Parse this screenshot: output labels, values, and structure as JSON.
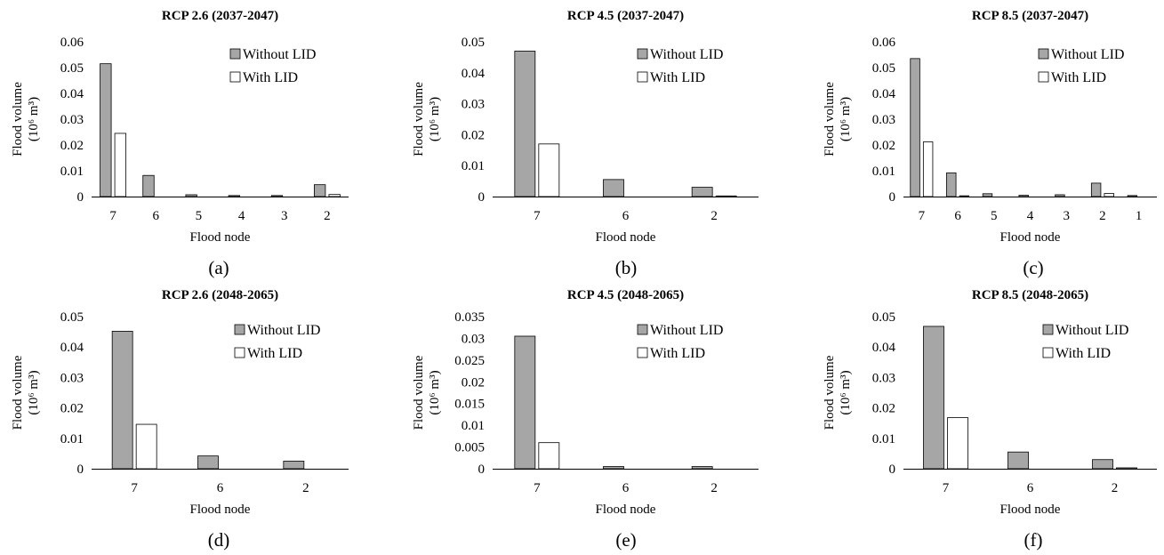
{
  "chart_data": [
    {
      "type": "bar",
      "title": "RCP 2.6 (2037-2047)",
      "caption": "(a)",
      "xlabel": "Flood node",
      "ylabel": "Flood volume",
      "ylabel_unit": "(10⁶ m³)",
      "ylim": [
        0,
        0.06
      ],
      "yticks": [
        "0",
        "0.01",
        "0.02",
        "0.03",
        "0.04",
        "0.05",
        "0.06"
      ],
      "categories": [
        "7",
        "6",
        "5",
        "4",
        "3",
        "2"
      ],
      "series": [
        {
          "name": "Without LID",
          "color": "#a6a6a6",
          "values": [
            0.0515,
            0.0082,
            0.0007,
            0.0004,
            0.0004,
            0.0046
          ]
        },
        {
          "name": "With LID",
          "color": "#ffffff",
          "values": [
            0.0245,
            0.0,
            0.0,
            0.0,
            0.0,
            0.0008
          ]
        }
      ],
      "legend": "top-right"
    },
    {
      "type": "bar",
      "title": "RCP 4.5 (2037-2047)",
      "caption": "(b)",
      "xlabel": "Flood node",
      "ylabel": "Flood volume",
      "ylabel_unit": "(10⁶ m³)",
      "ylim": [
        0,
        0.05
      ],
      "yticks": [
        "0",
        "0.01",
        "0.02",
        "0.03",
        "0.04",
        "0.05"
      ],
      "categories": [
        "7",
        "6",
        "2"
      ],
      "series": [
        {
          "name": "Without LID",
          "color": "#a6a6a6",
          "values": [
            0.047,
            0.0055,
            0.003
          ]
        },
        {
          "name": "With LID",
          "color": "#ffffff",
          "values": [
            0.017,
            0.0,
            0.0002
          ]
        }
      ],
      "legend": "top-right"
    },
    {
      "type": "bar",
      "title": "RCP 8.5 (2037-2047)",
      "caption": "(c)",
      "xlabel": "Flood node",
      "ylabel": "Flood volume",
      "ylabel_unit": "(10⁶ m³)",
      "ylim": [
        0,
        0.06
      ],
      "yticks": [
        "0",
        "0.01",
        "0.02",
        "0.03",
        "0.04",
        "0.05",
        "0.06"
      ],
      "categories": [
        "7",
        "6",
        "5",
        "4",
        "3",
        "2",
        "1"
      ],
      "series": [
        {
          "name": "Without LID",
          "color": "#a6a6a6",
          "values": [
            0.0535,
            0.0092,
            0.0011,
            0.0005,
            0.0007,
            0.0052,
            0.0004
          ]
        },
        {
          "name": "With LID",
          "color": "#ffffff",
          "values": [
            0.0212,
            0.0003,
            0.0,
            0.0,
            0.0,
            0.0012,
            0.0
          ]
        }
      ],
      "legend": "top-right"
    },
    {
      "type": "bar",
      "title": "RCP 2.6 (2048-2065)",
      "caption": "(d)",
      "xlabel": "Flood node",
      "ylabel": "Flood volume",
      "ylabel_unit": "(10⁶ m³)",
      "ylim": [
        0,
        0.05
      ],
      "yticks": [
        "0",
        "0.01",
        "0.02",
        "0.03",
        "0.04",
        "0.05"
      ],
      "categories": [
        "7",
        "6",
        "2"
      ],
      "series": [
        {
          "name": "Without LID",
          "color": "#a6a6a6",
          "values": [
            0.0452,
            0.0042,
            0.0025
          ]
        },
        {
          "name": "With LID",
          "color": "#ffffff",
          "values": [
            0.0146,
            0.0,
            0.0
          ]
        }
      ],
      "legend": "top-right"
    },
    {
      "type": "bar",
      "title": "RCP 4.5 (2048-2065)",
      "caption": "(e)",
      "xlabel": "Flood node",
      "ylabel": "Flood volume",
      "ylabel_unit": "(10⁶ m³)",
      "ylim": [
        0,
        0.035
      ],
      "yticks": [
        "0",
        "0.005",
        "0.01",
        "0.015",
        "0.02",
        "0.025",
        "0.03",
        "0.035"
      ],
      "categories": [
        "7",
        "6",
        "2"
      ],
      "series": [
        {
          "name": "Without LID",
          "color": "#a6a6a6",
          "values": [
            0.0305,
            0.0005,
            0.0005
          ]
        },
        {
          "name": "With LID",
          "color": "#ffffff",
          "values": [
            0.006,
            0.0,
            0.0
          ]
        }
      ],
      "legend": "top-right"
    },
    {
      "type": "bar",
      "title": "RCP 8.5 (2048-2065)",
      "caption": "(f)",
      "xlabel": "Flood node",
      "ylabel": "Flood volume",
      "ylabel_unit": "(10⁶ m³)",
      "ylim": [
        0,
        0.05
      ],
      "yticks": [
        "0",
        "0.01",
        "0.02",
        "0.03",
        "0.04",
        "0.05"
      ],
      "categories": [
        "7",
        "6",
        "2"
      ],
      "series": [
        {
          "name": "Without LID",
          "color": "#a6a6a6",
          "values": [
            0.0468,
            0.0055,
            0.003
          ]
        },
        {
          "name": "With LID",
          "color": "#ffffff",
          "values": [
            0.0168,
            0.0,
            0.0003
          ]
        }
      ],
      "legend": "top-right"
    }
  ]
}
